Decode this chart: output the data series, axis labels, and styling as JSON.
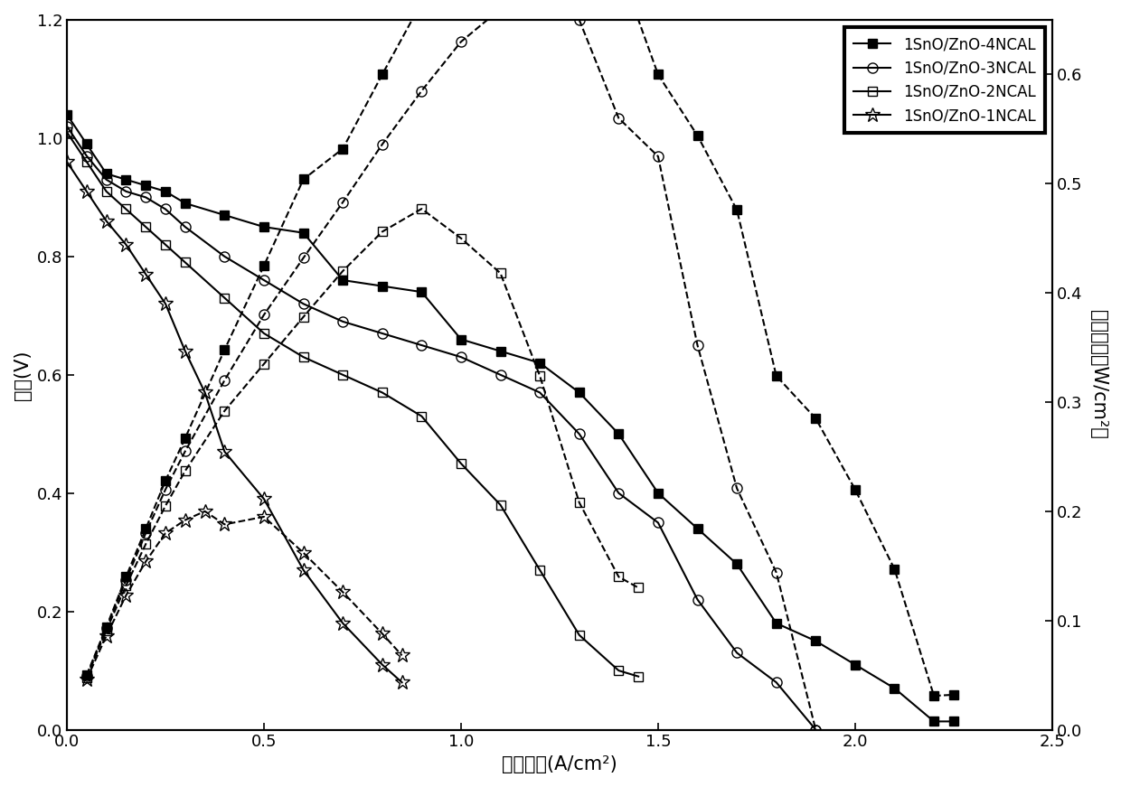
{
  "xlabel": "电流密度(A/cm²)",
  "ylabel_left": "电压(V)",
  "ylabel_right": "功率密度（W/cm²）",
  "xlim": [
    0.0,
    2.5
  ],
  "ylim_left": [
    0.0,
    1.2
  ],
  "ylim_right": [
    0.0,
    0.65
  ],
  "yticks_left": [
    0.0,
    0.2,
    0.4,
    0.6,
    0.8,
    1.0,
    1.2
  ],
  "yticks_right": [
    0.0,
    0.1,
    0.2,
    0.3,
    0.4,
    0.5,
    0.6
  ],
  "xticks": [
    0.0,
    0.5,
    1.0,
    1.5,
    2.0,
    2.5
  ],
  "series": [
    {
      "label": "1SnO/ZnO-4NCAL",
      "marker": "s",
      "fillstyle": "full",
      "markersize": 7,
      "linestyle": "-",
      "voltage_x": [
        0.0,
        0.05,
        0.1,
        0.15,
        0.2,
        0.25,
        0.3,
        0.4,
        0.5,
        0.6,
        0.7,
        0.8,
        0.9,
        1.0,
        1.1,
        1.2,
        1.3,
        1.4,
        1.5,
        1.6,
        1.7,
        1.8,
        1.9,
        2.0,
        2.1,
        2.2,
        2.25
      ],
      "voltage_y": [
        1.04,
        0.99,
        0.94,
        0.93,
        0.92,
        0.91,
        0.89,
        0.87,
        0.85,
        0.84,
        0.76,
        0.75,
        0.74,
        0.66,
        0.64,
        0.62,
        0.57,
        0.5,
        0.4,
        0.34,
        0.28,
        0.18,
        0.15,
        0.11,
        0.07,
        0.014,
        0.014
      ],
      "power_x": [
        0.05,
        0.1,
        0.15,
        0.2,
        0.25,
        0.3,
        0.4,
        0.5,
        0.6,
        0.7,
        0.8,
        0.9,
        1.0,
        1.1,
        1.2,
        1.3,
        1.4,
        1.5,
        1.6,
        1.7,
        1.8,
        1.9,
        2.0,
        2.1,
        2.2,
        2.25
      ],
      "power_y": [
        0.05,
        0.094,
        0.14,
        0.184,
        0.228,
        0.267,
        0.348,
        0.425,
        0.504,
        0.532,
        0.6,
        0.666,
        0.66,
        0.704,
        0.744,
        0.741,
        0.7,
        0.6,
        0.544,
        0.476,
        0.324,
        0.285,
        0.22,
        0.147,
        0.031,
        0.032
      ]
    },
    {
      "label": "1SnO/ZnO-3NCAL",
      "marker": "o",
      "fillstyle": "none",
      "markersize": 8,
      "linestyle": "-",
      "voltage_x": [
        0.0,
        0.05,
        0.1,
        0.15,
        0.2,
        0.25,
        0.3,
        0.4,
        0.5,
        0.6,
        0.7,
        0.8,
        0.9,
        1.0,
        1.1,
        1.2,
        1.3,
        1.4,
        1.5,
        1.6,
        1.7,
        1.8,
        1.9
      ],
      "voltage_y": [
        1.02,
        0.97,
        0.93,
        0.91,
        0.9,
        0.88,
        0.85,
        0.8,
        0.76,
        0.72,
        0.69,
        0.67,
        0.65,
        0.63,
        0.6,
        0.57,
        0.5,
        0.4,
        0.35,
        0.22,
        0.13,
        0.08,
        0.0
      ],
      "power_x": [
        0.05,
        0.1,
        0.15,
        0.2,
        0.25,
        0.3,
        0.4,
        0.5,
        0.6,
        0.7,
        0.8,
        0.9,
        1.0,
        1.1,
        1.2,
        1.3,
        1.4,
        1.5,
        1.6,
        1.7,
        1.8,
        1.9
      ],
      "power_y": [
        0.049,
        0.093,
        0.137,
        0.18,
        0.22,
        0.255,
        0.32,
        0.38,
        0.432,
        0.483,
        0.536,
        0.585,
        0.63,
        0.66,
        0.684,
        0.65,
        0.56,
        0.525,
        0.352,
        0.221,
        0.144,
        0.0
      ]
    },
    {
      "label": "1SnO/ZnO-2NCAL",
      "marker": "s",
      "fillstyle": "none",
      "markersize": 7,
      "linestyle": "-",
      "voltage_x": [
        0.0,
        0.05,
        0.1,
        0.15,
        0.2,
        0.25,
        0.3,
        0.4,
        0.5,
        0.6,
        0.7,
        0.8,
        0.9,
        1.0,
        1.1,
        1.2,
        1.3,
        1.4,
        1.45
      ],
      "voltage_y": [
        1.01,
        0.96,
        0.91,
        0.88,
        0.85,
        0.82,
        0.79,
        0.73,
        0.67,
        0.63,
        0.6,
        0.57,
        0.53,
        0.45,
        0.38,
        0.27,
        0.16,
        0.1,
        0.09
      ],
      "power_x": [
        0.05,
        0.1,
        0.15,
        0.2,
        0.25,
        0.3,
        0.4,
        0.5,
        0.6,
        0.7,
        0.8,
        0.9,
        1.0,
        1.1,
        1.2,
        1.3,
        1.4,
        1.45
      ],
      "power_y": [
        0.048,
        0.091,
        0.132,
        0.17,
        0.205,
        0.237,
        0.292,
        0.335,
        0.378,
        0.42,
        0.456,
        0.477,
        0.45,
        0.418,
        0.324,
        0.208,
        0.14,
        0.13
      ]
    },
    {
      "label": "1SnO/ZnO-1NCAL",
      "marker": "*",
      "fillstyle": "none",
      "markersize": 12,
      "linestyle": "-",
      "voltage_x": [
        0.0,
        0.05,
        0.1,
        0.15,
        0.2,
        0.25,
        0.3,
        0.35,
        0.4,
        0.5,
        0.6,
        0.7,
        0.8,
        0.85
      ],
      "voltage_y": [
        0.96,
        0.91,
        0.86,
        0.82,
        0.77,
        0.72,
        0.64,
        0.57,
        0.47,
        0.39,
        0.27,
        0.18,
        0.11,
        0.08
      ],
      "power_x": [
        0.05,
        0.1,
        0.15,
        0.2,
        0.25,
        0.3,
        0.35,
        0.4,
        0.5,
        0.6,
        0.7,
        0.8,
        0.85
      ],
      "power_y": [
        0.046,
        0.086,
        0.123,
        0.154,
        0.18,
        0.192,
        0.2,
        0.188,
        0.195,
        0.162,
        0.126,
        0.088,
        0.068
      ]
    }
  ],
  "background_color": "#ffffff",
  "legend_fontsize": 12,
  "tick_fontsize": 13,
  "label_fontsize": 15
}
